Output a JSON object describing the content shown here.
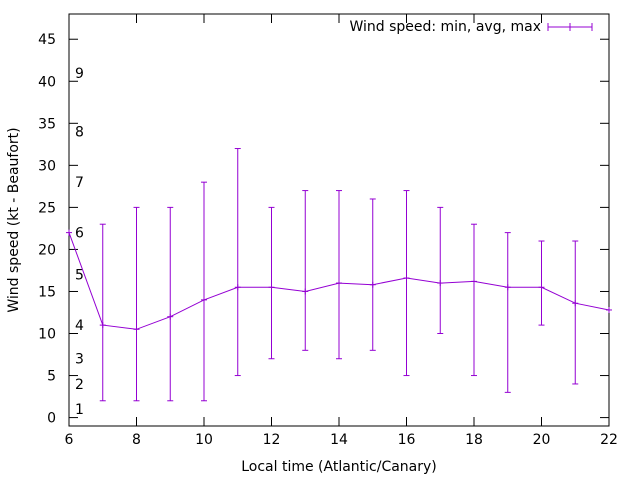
{
  "chart_data": {
    "type": "line",
    "title": "",
    "xlabel": "Local time (Atlantic/Canary)",
    "ylabel": "Wind speed (kt - Beaufort)",
    "xlim": [
      6,
      22
    ],
    "ylim": [
      -1,
      48
    ],
    "x_ticks": [
      6,
      8,
      10,
      12,
      14,
      16,
      18,
      20,
      22
    ],
    "y_ticks": [
      0,
      5,
      10,
      15,
      20,
      25,
      30,
      35,
      40,
      45
    ],
    "grid": false,
    "legend_position": "top-right",
    "series": [
      {
        "name": "Wind speed: min, avg, max",
        "color": "#9400d3",
        "x": [
          6,
          7,
          8,
          9,
          10,
          11,
          12,
          13,
          14,
          15,
          16,
          17,
          18,
          19,
          20,
          21,
          22
        ],
        "avg": [
          22,
          11,
          10.5,
          12,
          14,
          15.5,
          15.5,
          15,
          16,
          15.8,
          16.6,
          16,
          16.2,
          15.5,
          15.5,
          13.6,
          12.8
        ],
        "min": [
          null,
          2,
          2,
          2,
          2,
          5,
          7,
          8,
          7,
          8,
          5,
          10,
          5,
          3,
          11,
          4,
          null
        ],
        "max": [
          null,
          23,
          25,
          25,
          28,
          32,
          25,
          27,
          27,
          26,
          27,
          25,
          23,
          22,
          21,
          21,
          null
        ]
      }
    ],
    "beaufort_labels": [
      {
        "label": "1",
        "kt": 1
      },
      {
        "label": "2",
        "kt": 4
      },
      {
        "label": "3",
        "kt": 7
      },
      {
        "label": "4",
        "kt": 11
      },
      {
        "label": "5",
        "kt": 17
      },
      {
        "label": "6",
        "kt": 22
      },
      {
        "label": "7",
        "kt": 28
      },
      {
        "label": "8",
        "kt": 34
      },
      {
        "label": "9",
        "kt": 41
      }
    ]
  }
}
